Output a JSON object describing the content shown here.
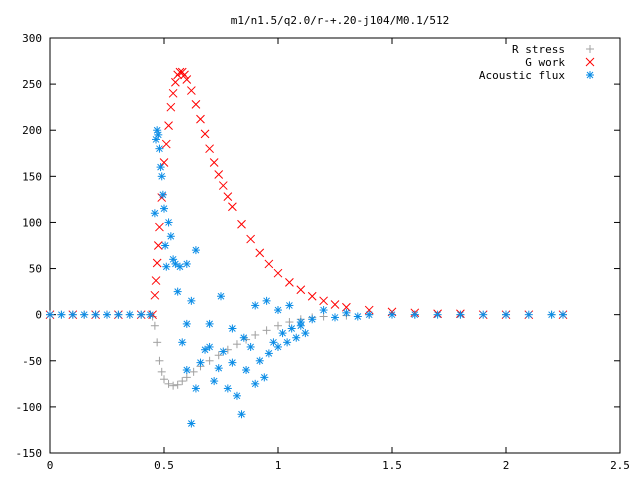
{
  "chart_data": {
    "type": "scatter",
    "title": "m1/n1.5/q2.0/r-+.20-j104/M0.1/512",
    "xlabel": "",
    "ylabel": "",
    "xlim": [
      0,
      2.5
    ],
    "ylim": [
      -150,
      300
    ],
    "x_ticks": [
      "0",
      "0.5",
      "1",
      "1.5",
      "2",
      "2.5"
    ],
    "y_ticks": [
      "-150",
      "-100",
      "-50",
      "0",
      "50",
      "100",
      "150",
      "200",
      "250",
      "300"
    ],
    "grid": false,
    "legend_position": "top-right",
    "series": [
      {
        "name": "R stress",
        "marker": "+",
        "color": "#a0a0a0",
        "points": [
          [
            0.0,
            0
          ],
          [
            0.05,
            0
          ],
          [
            0.1,
            0
          ],
          [
            0.15,
            0
          ],
          [
            0.2,
            0
          ],
          [
            0.25,
            0
          ],
          [
            0.3,
            0
          ],
          [
            0.35,
            0
          ],
          [
            0.4,
            0
          ],
          [
            0.44,
            0
          ],
          [
            0.45,
            -2
          ],
          [
            0.46,
            -12
          ],
          [
            0.47,
            -30
          ],
          [
            0.48,
            -50
          ],
          [
            0.49,
            -62
          ],
          [
            0.5,
            -70
          ],
          [
            0.52,
            -75
          ],
          [
            0.54,
            -77
          ],
          [
            0.56,
            -76
          ],
          [
            0.58,
            -72
          ],
          [
            0.6,
            -68
          ],
          [
            0.63,
            -62
          ],
          [
            0.66,
            -56
          ],
          [
            0.7,
            -50
          ],
          [
            0.74,
            -44
          ],
          [
            0.78,
            -38
          ],
          [
            0.82,
            -32
          ],
          [
            0.86,
            -27
          ],
          [
            0.9,
            -22
          ],
          [
            0.95,
            -17
          ],
          [
            1.0,
            -12
          ],
          [
            1.05,
            -8
          ],
          [
            1.1,
            -5
          ],
          [
            1.15,
            -3
          ],
          [
            1.2,
            -2
          ],
          [
            1.3,
            -1
          ],
          [
            1.4,
            0
          ],
          [
            1.6,
            0
          ],
          [
            1.8,
            0
          ],
          [
            2.0,
            0
          ],
          [
            2.2,
            0
          ],
          [
            2.25,
            0
          ]
        ]
      },
      {
        "name": "G work",
        "marker": "x",
        "color": "#ff0000",
        "points": [
          [
            0.0,
            0
          ],
          [
            0.1,
            0
          ],
          [
            0.2,
            0
          ],
          [
            0.3,
            0
          ],
          [
            0.4,
            0
          ],
          [
            0.45,
            0
          ],
          [
            0.46,
            21
          ],
          [
            0.465,
            37
          ],
          [
            0.47,
            56
          ],
          [
            0.475,
            75
          ],
          [
            0.48,
            95
          ],
          [
            0.49,
            127
          ],
          [
            0.5,
            165
          ],
          [
            0.51,
            185
          ],
          [
            0.52,
            205
          ],
          [
            0.53,
            225
          ],
          [
            0.54,
            240
          ],
          [
            0.55,
            252
          ],
          [
            0.56,
            260
          ],
          [
            0.57,
            263
          ],
          [
            0.58,
            263
          ],
          [
            0.59,
            260
          ],
          [
            0.6,
            255
          ],
          [
            0.62,
            243
          ],
          [
            0.64,
            228
          ],
          [
            0.66,
            212
          ],
          [
            0.68,
            196
          ],
          [
            0.7,
            180
          ],
          [
            0.72,
            165
          ],
          [
            0.74,
            152
          ],
          [
            0.76,
            140
          ],
          [
            0.78,
            128
          ],
          [
            0.8,
            117
          ],
          [
            0.84,
            98
          ],
          [
            0.88,
            82
          ],
          [
            0.92,
            67
          ],
          [
            0.96,
            55
          ],
          [
            1.0,
            45
          ],
          [
            1.05,
            35
          ],
          [
            1.1,
            27
          ],
          [
            1.15,
            20
          ],
          [
            1.2,
            15
          ],
          [
            1.25,
            11
          ],
          [
            1.3,
            8
          ],
          [
            1.4,
            5
          ],
          [
            1.5,
            3
          ],
          [
            1.6,
            2
          ],
          [
            1.7,
            1
          ],
          [
            1.8,
            1
          ],
          [
            1.9,
            0
          ],
          [
            2.0,
            0
          ],
          [
            2.1,
            0
          ],
          [
            2.25,
            0
          ]
        ]
      },
      {
        "name": "Acoustic flux",
        "marker": "*",
        "color": "#0a8ce6",
        "points": [
          [
            0.0,
            0
          ],
          [
            0.05,
            0
          ],
          [
            0.1,
            0
          ],
          [
            0.15,
            0
          ],
          [
            0.2,
            0
          ],
          [
            0.25,
            0
          ],
          [
            0.3,
            0
          ],
          [
            0.35,
            0
          ],
          [
            0.4,
            0
          ],
          [
            0.44,
            0
          ],
          [
            0.46,
            110
          ],
          [
            0.465,
            190
          ],
          [
            0.47,
            200
          ],
          [
            0.475,
            195
          ],
          [
            0.48,
            180
          ],
          [
            0.485,
            160
          ],
          [
            0.49,
            150
          ],
          [
            0.495,
            130
          ],
          [
            0.5,
            115
          ],
          [
            0.505,
            75
          ],
          [
            0.51,
            52
          ],
          [
            0.52,
            100
          ],
          [
            0.53,
            85
          ],
          [
            0.54,
            60
          ],
          [
            0.55,
            55
          ],
          [
            0.57,
            52
          ],
          [
            0.6,
            55
          ],
          [
            0.64,
            70
          ],
          [
            0.56,
            25
          ],
          [
            0.58,
            -30
          ],
          [
            0.6,
            -60
          ],
          [
            0.62,
            -118
          ],
          [
            0.64,
            -80
          ],
          [
            0.66,
            -52
          ],
          [
            0.68,
            -38
          ],
          [
            0.7,
            -35
          ],
          [
            0.72,
            -72
          ],
          [
            0.74,
            -58
          ],
          [
            0.76,
            -40
          ],
          [
            0.78,
            -80
          ],
          [
            0.8,
            -52
          ],
          [
            0.82,
            -88
          ],
          [
            0.84,
            -108
          ],
          [
            0.86,
            -60
          ],
          [
            0.88,
            -35
          ],
          [
            0.9,
            -75
          ],
          [
            0.92,
            -50
          ],
          [
            0.94,
            -68
          ],
          [
            0.96,
            -42
          ],
          [
            0.98,
            -30
          ],
          [
            1.0,
            -35
          ],
          [
            1.02,
            -20
          ],
          [
            1.04,
            -30
          ],
          [
            1.06,
            -15
          ],
          [
            1.08,
            -25
          ],
          [
            1.1,
            -12
          ],
          [
            1.12,
            -20
          ],
          [
            0.6,
            -10
          ],
          [
            0.62,
            15
          ],
          [
            0.7,
            -10
          ],
          [
            0.75,
            20
          ],
          [
            0.8,
            -15
          ],
          [
            0.85,
            -25
          ],
          [
            0.9,
            10
          ],
          [
            0.95,
            15
          ],
          [
            1.0,
            5
          ],
          [
            1.05,
            10
          ],
          [
            1.1,
            -8
          ],
          [
            1.15,
            -5
          ],
          [
            1.2,
            5
          ],
          [
            1.25,
            -3
          ],
          [
            1.3,
            2
          ],
          [
            1.35,
            -2
          ],
          [
            1.4,
            0
          ],
          [
            1.5,
            0
          ],
          [
            1.6,
            0
          ],
          [
            1.7,
            0
          ],
          [
            1.8,
            0
          ],
          [
            1.9,
            0
          ],
          [
            2.0,
            0
          ],
          [
            2.1,
            0
          ],
          [
            2.2,
            0
          ],
          [
            2.25,
            0
          ]
        ]
      }
    ]
  }
}
